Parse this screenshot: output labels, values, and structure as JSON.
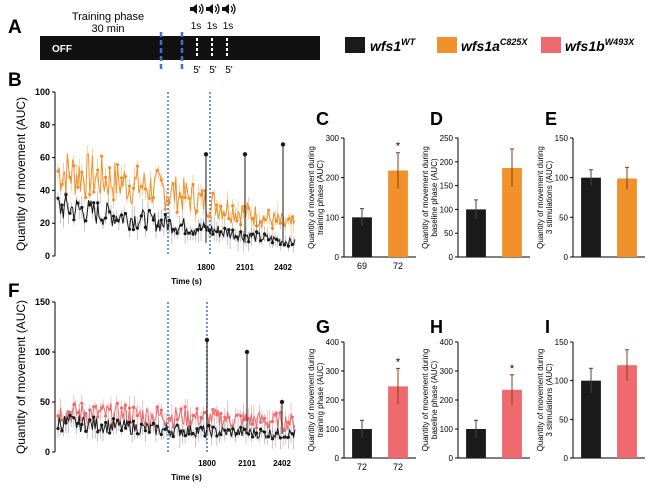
{
  "panel_letters": [
    "A",
    "B",
    "C",
    "D",
    "E",
    "F",
    "G",
    "H",
    "I"
  ],
  "timeline": {
    "phase_label_line1": "Training phase",
    "phase_label_line2": "30 min",
    "off_label": "OFF",
    "stim_duration_labels": [
      "1s",
      "1s",
      "1s"
    ],
    "interval_labels": [
      "5'",
      "5'",
      "5'"
    ],
    "speaker_icon": "speaker-icon"
  },
  "legend": {
    "entries": [
      {
        "base": "wfs1",
        "sup": "WT",
        "color": "#1a1a1a"
      },
      {
        "base": "wfs1a",
        "sup": "C825X",
        "color": "#f0912b"
      },
      {
        "base": "wfs1b",
        "sup": "W493X",
        "color": "#ef6a6e"
      }
    ]
  },
  "colors": {
    "wt": "#1a1a1a",
    "a_mutant": "#f0912b",
    "b_mutant": "#ef6a6e",
    "divider": "#3b73c8"
  },
  "chart_data": [
    {
      "id": "B",
      "type": "line",
      "ylabel": "Quantity of movement (AUC)",
      "xlabel": "Time (s)",
      "ylim": [
        0,
        100
      ],
      "yticks": [
        0,
        20,
        40,
        60,
        80,
        100
      ],
      "xticks": [
        "1800",
        "2101",
        "2402"
      ],
      "series": [
        {
          "name": "wfs1a C825X",
          "color": "#f0912b",
          "start_mean": 52,
          "mid_mean": 40,
          "end_mean": 18
        },
        {
          "name": "wfs1 WT",
          "color": "#1a1a1a",
          "start_mean": 30,
          "mid_mean": 20,
          "end_mean": 8
        }
      ],
      "peaks": [
        {
          "time": 1800,
          "value": 62
        },
        {
          "time": 2101,
          "value": 62
        },
        {
          "time": 2402,
          "value": 68
        }
      ]
    },
    {
      "id": "C",
      "type": "bar",
      "ylabel": "Quantity of movement during training phase (AUC)",
      "ylim": [
        0,
        300
      ],
      "yticks": [
        0,
        100,
        200,
        300
      ],
      "categories": [
        "wfs1 WT",
        "wfs1a C825X"
      ],
      "values": [
        100,
        218
      ],
      "errors": [
        22,
        45
      ],
      "colors": [
        "#1a1a1a",
        "#f0912b"
      ],
      "n_labels": [
        "69",
        "72"
      ],
      "significance": [
        "",
        "*"
      ]
    },
    {
      "id": "D",
      "type": "bar",
      "ylabel": "Quantity of movement during baseline phase (AUC)",
      "ylim": [
        0,
        250
      ],
      "yticks": [
        0,
        50,
        100,
        150,
        200,
        250
      ],
      "categories": [
        "wfs1 WT",
        "wfs1a C825X"
      ],
      "values": [
        100,
        187
      ],
      "errors": [
        20,
        40
      ],
      "colors": [
        "#1a1a1a",
        "#f0912b"
      ]
    },
    {
      "id": "E",
      "type": "bar",
      "ylabel": "Quantity of movement during 3 stimulations (AUC)",
      "ylim": [
        0,
        150
      ],
      "yticks": [
        0,
        50,
        100,
        150
      ],
      "categories": [
        "wfs1 WT",
        "wfs1a C825X"
      ],
      "values": [
        100,
        99
      ],
      "errors": [
        10,
        14
      ],
      "colors": [
        "#1a1a1a",
        "#f0912b"
      ]
    },
    {
      "id": "F",
      "type": "line",
      "ylabel": "Quantity of movement (AUC)",
      "xlabel": "Time (s)",
      "ylim": [
        0,
        150
      ],
      "yticks": [
        0,
        50,
        100,
        150
      ],
      "xticks": [
        "1800",
        "2101",
        "2402"
      ],
      "series": [
        {
          "name": "wfs1b W493X",
          "color": "#ef6a6e",
          "start_mean": 40,
          "mid_mean": 36,
          "end_mean": 30
        },
        {
          "name": "wfs1 WT",
          "color": "#1a1a1a",
          "start_mean": 30,
          "mid_mean": 22,
          "end_mean": 18
        }
      ],
      "peaks": [
        {
          "time": 1800,
          "value": 112
        },
        {
          "time": 2101,
          "value": 100
        },
        {
          "time": 2402,
          "value": 50
        }
      ]
    },
    {
      "id": "G",
      "type": "bar",
      "ylabel": "Quantity of movement during training phase (AUC)",
      "ylim": [
        0,
        400
      ],
      "yticks": [
        0,
        100,
        200,
        300,
        400
      ],
      "categories": [
        "wfs1 WT",
        "wfs1b W493X"
      ],
      "values": [
        100,
        247
      ],
      "errors": [
        30,
        62
      ],
      "colors": [
        "#1a1a1a",
        "#ef6a6e"
      ],
      "n_labels": [
        "72",
        "72"
      ],
      "significance": [
        "",
        "*"
      ]
    },
    {
      "id": "H",
      "type": "bar",
      "ylabel": "Quantity of movement during baseline phase (AUC)",
      "ylim": [
        0,
        400
      ],
      "yticks": [
        0,
        100,
        200,
        300,
        400
      ],
      "categories": [
        "wfs1 WT",
        "wfs1b W493X"
      ],
      "values": [
        100,
        235
      ],
      "errors": [
        30,
        52
      ],
      "colors": [
        "#1a1a1a",
        "#ef6a6e"
      ],
      "significance": [
        "",
        "*"
      ]
    },
    {
      "id": "I",
      "type": "bar",
      "ylabel": "Quantity of movement during 3 stimulations (AUC)",
      "ylim": [
        0,
        150
      ],
      "yticks": [
        0,
        50,
        100,
        150
      ],
      "categories": [
        "wfs1 WT",
        "wfs1b W493X"
      ],
      "values": [
        100,
        120
      ],
      "errors": [
        16,
        20
      ],
      "colors": [
        "#1a1a1a",
        "#ef6a6e"
      ]
    }
  ]
}
